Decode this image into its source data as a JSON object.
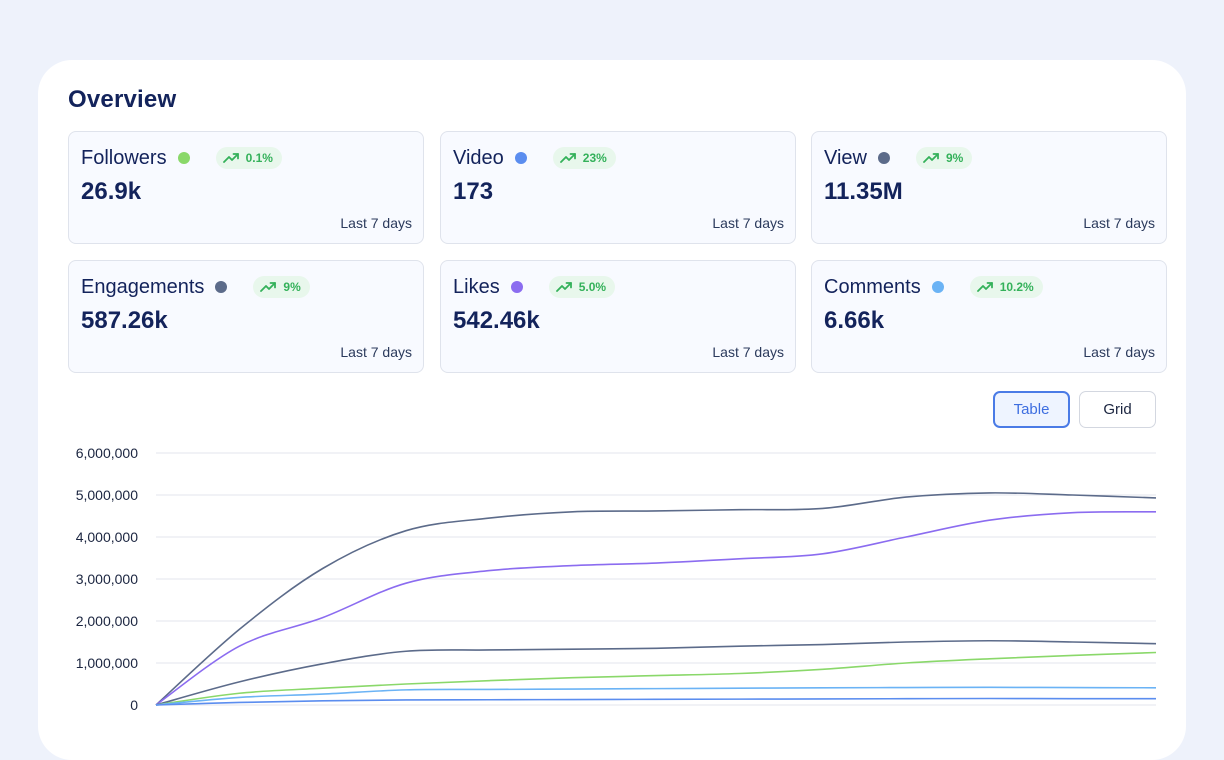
{
  "page": {
    "title": "Overview"
  },
  "metrics": [
    {
      "label": "Followers",
      "change": "0.1%",
      "value": "26.9k",
      "period": "Last 7 days",
      "dot_color": "#8ad86a"
    },
    {
      "label": "Video",
      "change": "23%",
      "value": "173",
      "period": "Last 7 days",
      "dot_color": "#5b8def"
    },
    {
      "label": "View",
      "change": "9%",
      "value": "11.35M",
      "period": "Last 7 days",
      "dot_color": "#5c6b8a"
    },
    {
      "label": "Engagements",
      "change": "9%",
      "value": "587.26k",
      "period": "Last 7 days",
      "dot_color": "#5c6b8a"
    },
    {
      "label": "Likes",
      "change": "5.0%",
      "value": "542.46k",
      "period": "Last 7 days",
      "dot_color": "#8b6cf0"
    },
    {
      "label": "Comments",
      "change": "10.2%",
      "value": "6.66k",
      "period": "Last 7 days",
      "dot_color": "#6bb3f5"
    }
  ],
  "badge_icon": "trending-up-icon",
  "view_toggle": {
    "table_label": "Table",
    "grid_label": "Grid",
    "active": "Table"
  },
  "chart_data": {
    "type": "line",
    "title": "",
    "xlabel": "",
    "ylabel": "",
    "ylim": [
      0,
      6000000
    ],
    "yticks": [
      0,
      1000000,
      2000000,
      3000000,
      4000000,
      5000000,
      6000000
    ],
    "ytick_labels": [
      "0",
      "1,000,000",
      "2,000,000",
      "3,000,000",
      "4,000,000",
      "5,000,000",
      "6,000,000"
    ],
    "grid": true,
    "x": [
      0,
      1,
      2,
      3,
      4,
      5,
      6,
      7,
      8,
      9,
      10,
      11,
      12
    ],
    "xlim": [
      0,
      12
    ],
    "series": [
      {
        "color": "#5c6b8a",
        "values": [
          0,
          1800000,
          3250000,
          4150000,
          4450000,
          4600000,
          4620000,
          4650000,
          4680000,
          4950000,
          5050000,
          5000000,
          4930000
        ]
      },
      {
        "color": "#8b6cf0",
        "values": [
          0,
          1400000,
          2080000,
          2900000,
          3200000,
          3320000,
          3380000,
          3480000,
          3600000,
          4000000,
          4400000,
          4580000,
          4600000
        ]
      },
      {
        "color": "#5c6b8a",
        "values": [
          0,
          550000,
          980000,
          1280000,
          1310000,
          1330000,
          1350000,
          1400000,
          1440000,
          1500000,
          1530000,
          1500000,
          1460000
        ]
      },
      {
        "color": "#8ad86a",
        "values": [
          0,
          280000,
          400000,
          500000,
          580000,
          650000,
          700000,
          750000,
          850000,
          1000000,
          1100000,
          1180000,
          1250000
        ]
      },
      {
        "color": "#6bb3f5",
        "values": [
          0,
          180000,
          260000,
          360000,
          370000,
          380000,
          390000,
          400000,
          410000,
          415000,
          420000,
          415000,
          410000
        ]
      },
      {
        "color": "#5b8def",
        "values": [
          0,
          60000,
          100000,
          120000,
          125000,
          130000,
          135000,
          140000,
          145000,
          150000,
          155000,
          150000,
          150000
        ]
      }
    ]
  }
}
